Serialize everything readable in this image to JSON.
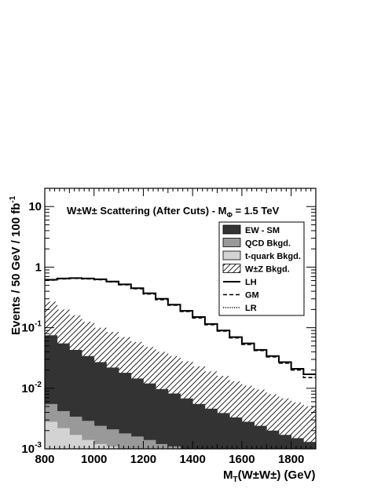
{
  "chart_data": {
    "type": "area",
    "title": "W±W± Scattering (After Cuts) - M",
    "title_subscript": "Φ",
    "title_suffix": " = 1.5 TeV",
    "xlabel": "M",
    "xlabel_subscript": "T",
    "xlabel_suffix": "(W±W±) (GeV)",
    "ylabel": "Events / 50 GeV / 100 fb",
    "ylabel_superscript": "-1",
    "xlim": [
      800,
      1900
    ],
    "ylim": [
      0.001,
      20
    ],
    "yscale": "log",
    "x_ticks": [
      {
        "value": 800,
        "label": "800"
      },
      {
        "value": 1000,
        "label": "1000"
      },
      {
        "value": 1200,
        "label": "1200"
      },
      {
        "value": 1400,
        "label": "1400"
      },
      {
        "value": 1600,
        "label": "1600"
      },
      {
        "value": 1800,
        "label": "1800"
      }
    ],
    "y_ticks": [
      {
        "value": 10,
        "base": "10",
        "exp": ""
      },
      {
        "value": 1,
        "base": "1",
        "exp": ""
      },
      {
        "value": 0.1,
        "base": "10",
        "exp": "-1"
      },
      {
        "value": 0.01,
        "base": "10",
        "exp": "-2"
      },
      {
        "value": 0.001,
        "base": "10",
        "exp": "-3"
      }
    ],
    "bin_edges": [
      800,
      850,
      900,
      950,
      1000,
      1050,
      1100,
      1150,
      1200,
      1250,
      1300,
      1350,
      1400,
      1450,
      1500,
      1550,
      1600,
      1650,
      1700,
      1750,
      1800,
      1850,
      1900
    ],
    "legend_position": "top-right",
    "series": [
      {
        "name": "W±Z Bkgd.",
        "style": "hatched",
        "values": [
          0.27,
          0.2,
          0.16,
          0.125,
          0.1,
          0.085,
          0.07,
          0.058,
          0.048,
          0.04,
          0.034,
          0.028,
          0.023,
          0.019,
          0.016,
          0.013,
          0.011,
          0.0095,
          0.008,
          0.0068,
          0.0058,
          0.005
        ]
      },
      {
        "name": "EW - SM",
        "style": "fill",
        "color": "#333333",
        "values": [
          0.075,
          0.055,
          0.043,
          0.034,
          0.027,
          0.022,
          0.018,
          0.0145,
          0.012,
          0.0097,
          0.0082,
          0.0068,
          0.0055,
          0.0046,
          0.0039,
          0.0033,
          0.0028,
          0.0024,
          0.002,
          0.0017,
          0.0015,
          0.0013
        ]
      },
      {
        "name": "QCD Bkgd.",
        "style": "fill",
        "color": "#999999",
        "values": [
          0.0055,
          0.0042,
          0.0034,
          0.0029,
          0.0024,
          0.0021,
          0.0018,
          0.0016,
          0.0014,
          0.0012,
          0.0011,
          0.001,
          0.001,
          0.001,
          0.001,
          0.001,
          0.001,
          0.001,
          0.001,
          0.001,
          0.001,
          0.001
        ]
      },
      {
        "name": "t-quark Bkgd.",
        "style": "fill",
        "color": "#d3d3d3",
        "values": [
          0.0028,
          0.0022,
          0.0017,
          0.0014,
          0.0012,
          0.0011,
          0.001,
          0.001,
          0.001,
          0.001,
          0.001,
          0.001,
          0.001,
          0.001,
          0.001,
          0.001,
          0.001,
          0.001,
          0.001,
          0.001,
          0.001,
          0.001
        ]
      },
      {
        "name": "LH",
        "style": "solid",
        "values": [
          0.62,
          0.65,
          0.66,
          0.65,
          0.63,
          0.58,
          0.52,
          0.45,
          0.37,
          0.3,
          0.24,
          0.19,
          0.15,
          0.115,
          0.09,
          0.07,
          0.055,
          0.043,
          0.034,
          0.027,
          0.021,
          0.017
        ]
      },
      {
        "name": "GM",
        "style": "dashed",
        "values": [
          0.61,
          0.64,
          0.65,
          0.64,
          0.62,
          0.57,
          0.51,
          0.44,
          0.36,
          0.29,
          0.235,
          0.185,
          0.145,
          0.112,
          0.088,
          0.068,
          0.053,
          0.042,
          0.033,
          0.026,
          0.02,
          0.015
        ]
      },
      {
        "name": "LR",
        "style": "dotted",
        "values": [
          0.62,
          0.65,
          0.66,
          0.65,
          0.63,
          0.58,
          0.52,
          0.45,
          0.37,
          0.3,
          0.24,
          0.19,
          0.15,
          0.115,
          0.09,
          0.07,
          0.055,
          0.043,
          0.034,
          0.027,
          0.021,
          0.017
        ]
      }
    ]
  }
}
